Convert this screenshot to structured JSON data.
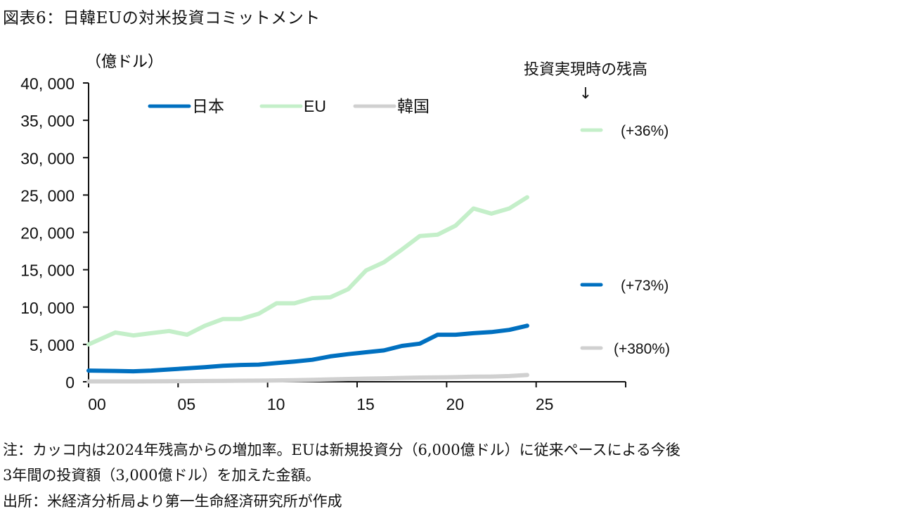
{
  "title": "図表6：日韓EUの対米投資コミットメント",
  "chart_data": {
    "type": "line",
    "title": "図表6：日韓EUの対米投資コミットメント",
    "ylabel": "（億ドル）",
    "xlabel": "",
    "ylim": [
      0,
      40000
    ],
    "xlim": [
      2000,
      2030
    ],
    "y_ticks": [
      0,
      5000,
      10000,
      15000,
      20000,
      25000,
      30000,
      35000,
      40000
    ],
    "y_tick_labels": [
      "0",
      "5, 000",
      "10, 000",
      "15, 000",
      "20, 000",
      "25, 000",
      "30, 000",
      "35, 000",
      "40, 000"
    ],
    "x_ticks": [
      2000,
      2005,
      2010,
      2015,
      2020,
      2025
    ],
    "x_tick_labels": [
      "00",
      "05",
      "10",
      "15",
      "20",
      "25"
    ],
    "grid": false,
    "legend_position": "top-center",
    "x": [
      2000,
      2001,
      2002,
      2003,
      2004,
      2005,
      2006,
      2007,
      2008,
      2009,
      2010,
      2011,
      2012,
      2013,
      2014,
      2015,
      2016,
      2017,
      2018,
      2019,
      2020,
      2021,
      2022,
      2023,
      2024
    ],
    "series": [
      {
        "name": "日本",
        "color": "#0070c0",
        "values": [
          1500,
          1450,
          1400,
          1500,
          1650,
          1800,
          1950,
          2150,
          2250,
          2300,
          2500,
          2700,
          2950,
          3400,
          3700,
          3950,
          4200,
          4800,
          5100,
          6300,
          6300,
          6500,
          6650,
          6950,
          7500
        ]
      },
      {
        "name": "EU",
        "color": "#c4efc9",
        "values": [
          5000,
          6600,
          6200,
          6500,
          6800,
          6300,
          7500,
          8400,
          8400,
          9100,
          10500,
          10500,
          11200,
          11300,
          12400,
          14900,
          16000,
          17700,
          19500,
          19700,
          20900,
          23200,
          22500,
          23200,
          24700
        ]
      },
      {
        "name": "韓国",
        "color": "#d0d0d0",
        "values": [
          50,
          50,
          50,
          60,
          70,
          80,
          100,
          120,
          140,
          150,
          180,
          220,
          260,
          320,
          380,
          420,
          460,
          520,
          560,
          580,
          620,
          680,
          700,
          760,
          900
        ]
      }
    ],
    "annotation": {
      "header": "投資実現時の残高",
      "arrow": "↓",
      "items": [
        {
          "series": "EU",
          "label": "(+36%)",
          "color": "#c4efc9",
          "value": 33600
        },
        {
          "series": "日本",
          "label": "(+73%)",
          "color": "#0070c0",
          "value": 12975
        },
        {
          "series": "韓国",
          "label": "(+380%)",
          "color": "#d0d0d0",
          "value": 4320
        }
      ]
    }
  },
  "notes": {
    "line1": "注：カッコ内は2024年残高からの増加率。EUは新規投資分（6,000億ドル）に従来ペースによる今後",
    "line2": "3年間の投資額（3,000億ドル）を加えた金額。",
    "source": "出所：米経済分析局より第一生命経済研究所が作成"
  }
}
